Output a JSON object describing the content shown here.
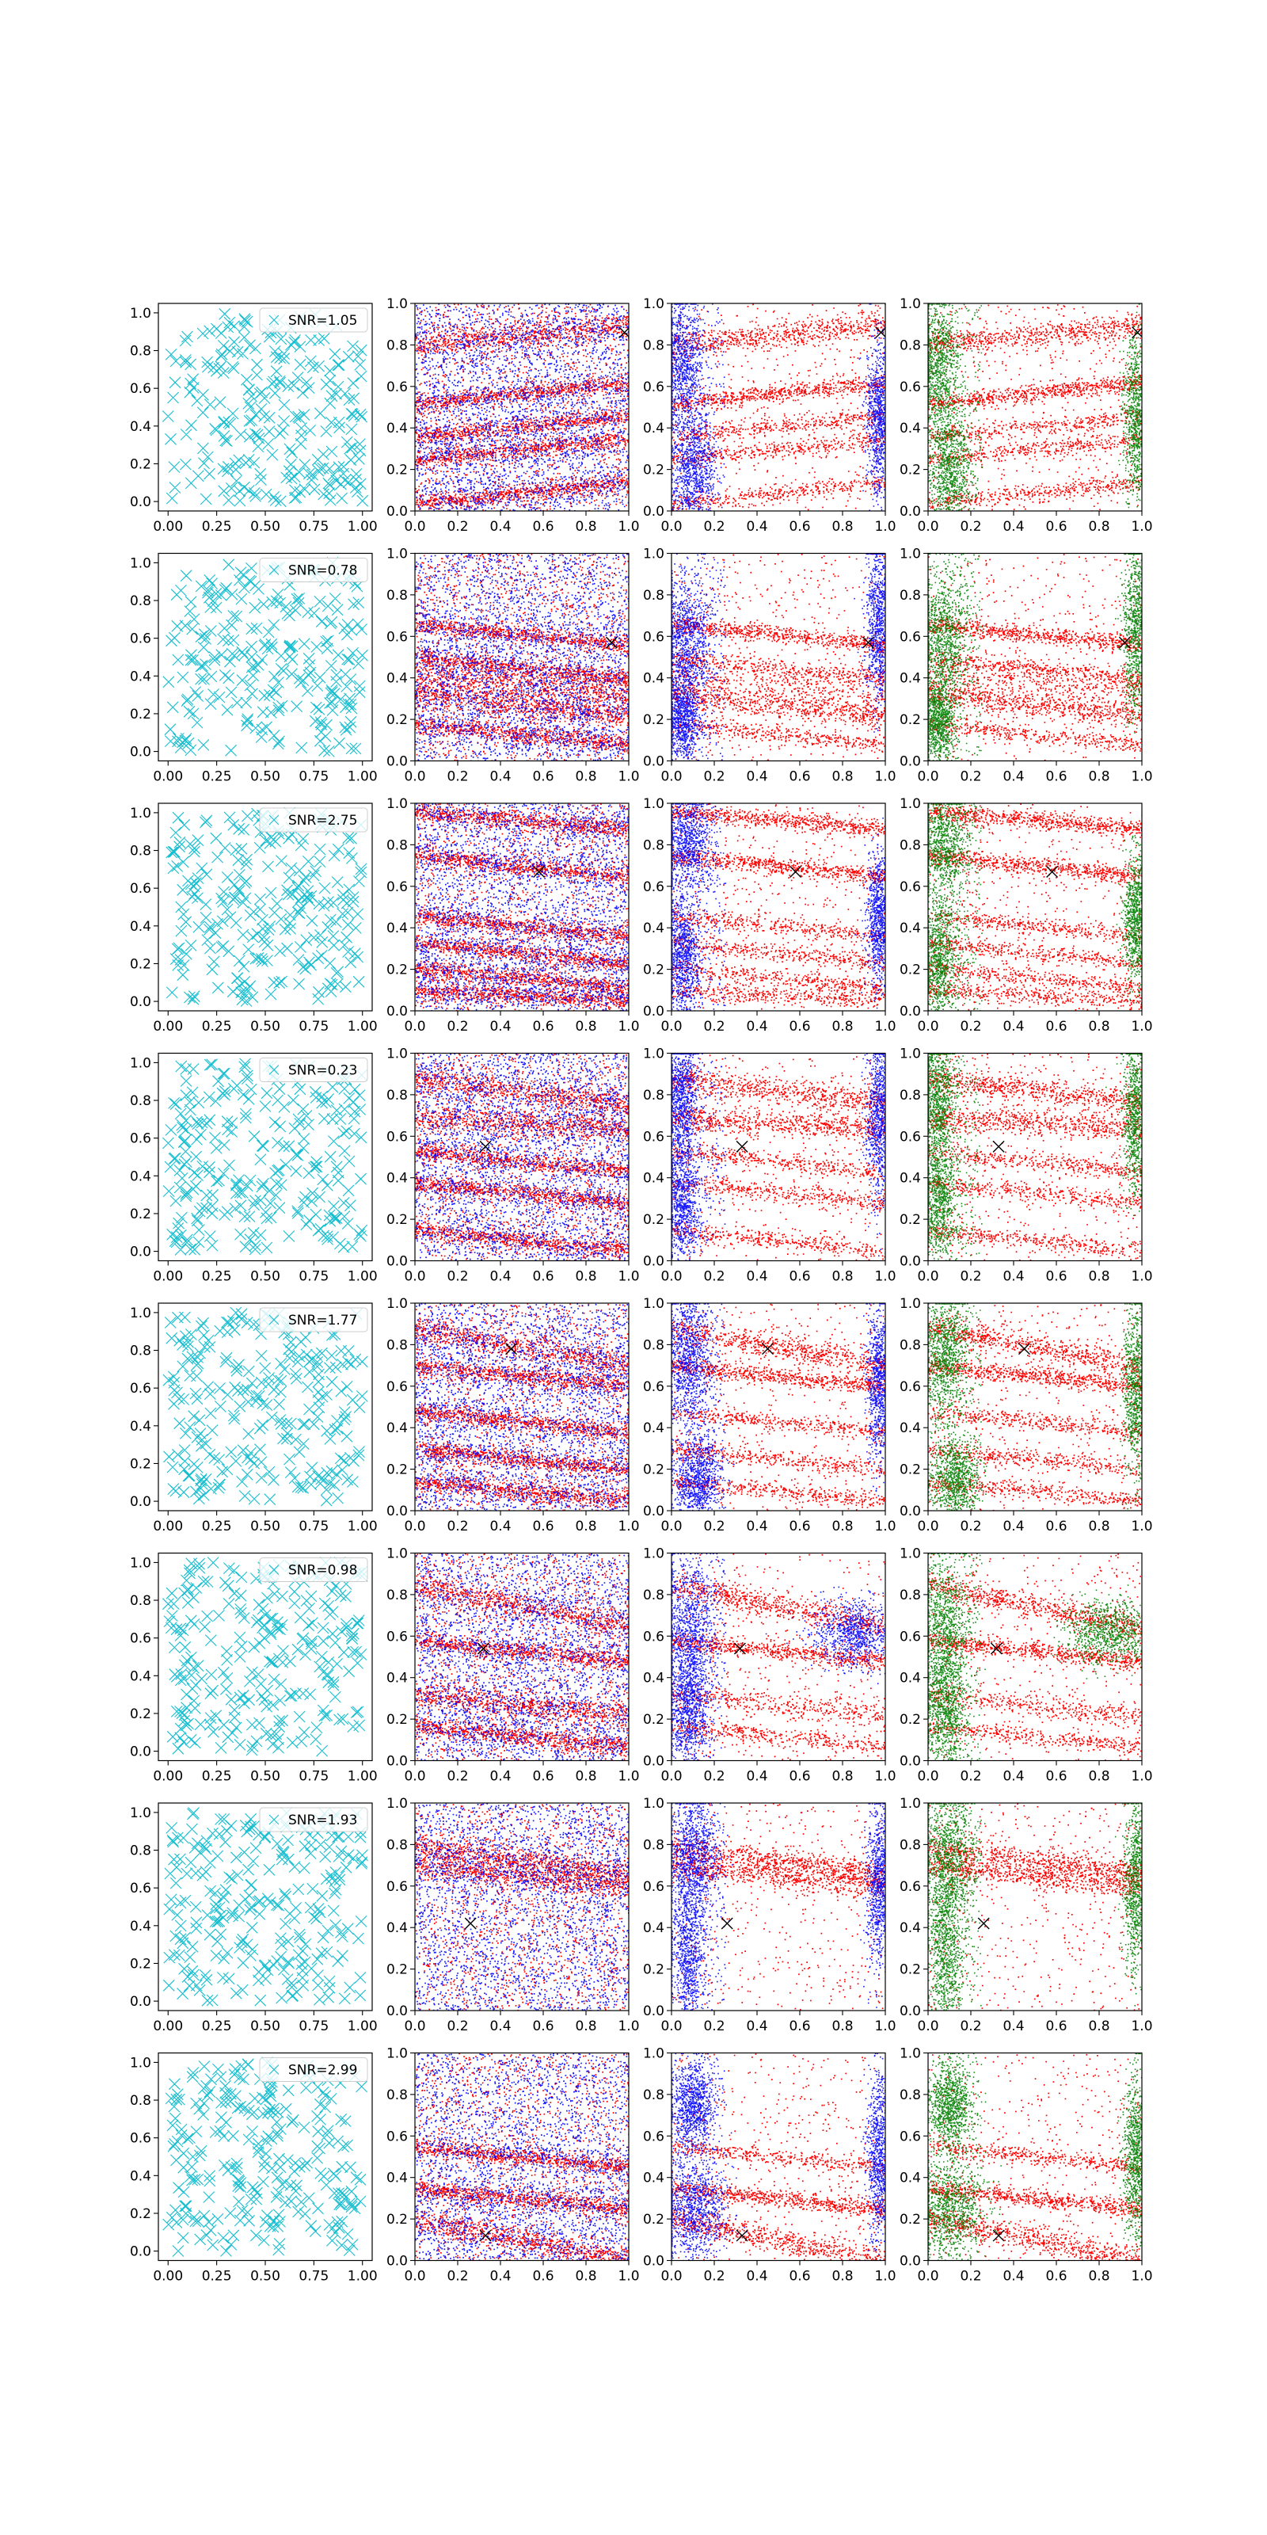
{
  "figure": {
    "rows": 8,
    "cols": 4,
    "colors": {
      "cyan": "#17becf",
      "red": "#ff0000",
      "blue": "#0000ff",
      "green": "#008000",
      "black": "#000000"
    }
  },
  "chart_data": {
    "type": "scatter",
    "grid": false,
    "axes": {
      "col1": {
        "xlim": [
          -0.05,
          1.05
        ],
        "ylim": [
          -0.05,
          1.05
        ],
        "xticks": [
          "0.00",
          "0.25",
          "0.50",
          "0.75",
          "1.00"
        ],
        "yticks": [
          "0.0",
          "0.2",
          "0.4",
          "0.6",
          "0.8",
          "1.0"
        ]
      },
      "other": {
        "xlim": [
          0,
          1
        ],
        "ylim": [
          0,
          1
        ],
        "xticks": [
          "0.0",
          "0.2",
          "0.4",
          "0.6",
          "0.8",
          "1.0"
        ],
        "yticks": [
          "0.0",
          "0.2",
          "0.4",
          "0.6",
          "0.8",
          "1.0"
        ]
      }
    },
    "legend_placement": "top-right",
    "rows": [
      {
        "snr_label": "SNR=1.05",
        "target": [
          0.98,
          0.86
        ],
        "bands": [
          [
            0.8,
            0.9,
            0.03
          ],
          [
            0.52,
            0.62,
            0.02
          ],
          [
            0.36,
            0.46,
            0.02
          ],
          [
            0.25,
            0.35,
            0.02
          ],
          [
            0.04,
            0.14,
            0.02
          ]
        ],
        "blue_blobs": [
          [
            0.05,
            0.7,
            0.05,
            0.16
          ],
          [
            0.1,
            0.2,
            0.05,
            0.14
          ],
          [
            0.97,
            0.45,
            0.03,
            0.2
          ]
        ]
      },
      {
        "snr_label": "SNR=0.78",
        "target": [
          0.92,
          0.57
        ],
        "bands": [
          [
            0.32,
            0.22,
            0.03
          ],
          [
            0.66,
            0.56,
            0.02
          ],
          [
            0.41,
            0.33,
            0.04
          ],
          [
            0.5,
            0.4,
            0.02
          ],
          [
            0.18,
            0.08,
            0.02
          ]
        ],
        "blue_blobs": [
          [
            0.07,
            0.6,
            0.06,
            0.15
          ],
          [
            0.05,
            0.2,
            0.04,
            0.1
          ],
          [
            0.97,
            0.65,
            0.03,
            0.2
          ]
        ]
      },
      {
        "snr_label": "SNR=2.75",
        "target": [
          0.58,
          0.67
        ],
        "bands": [
          [
            0.96,
            0.88,
            0.02
          ],
          [
            0.75,
            0.65,
            0.02
          ],
          [
            0.46,
            0.36,
            0.02
          ],
          [
            0.33,
            0.23,
            0.02
          ],
          [
            0.21,
            0.11,
            0.02
          ],
          [
            0.1,
            0.05,
            0.02
          ]
        ],
        "blue_blobs": [
          [
            0.07,
            0.8,
            0.06,
            0.12
          ],
          [
            0.05,
            0.25,
            0.04,
            0.15
          ],
          [
            0.97,
            0.45,
            0.03,
            0.15
          ]
        ]
      },
      {
        "snr_label": "SNR=0.23",
        "target": [
          0.33,
          0.55
        ],
        "bands": [
          [
            0.88,
            0.76,
            0.03
          ],
          [
            0.69,
            0.64,
            0.03
          ],
          [
            0.53,
            0.43,
            0.02
          ],
          [
            0.38,
            0.28,
            0.02
          ],
          [
            0.15,
            0.05,
            0.02
          ]
        ],
        "blue_blobs": [
          [
            0.04,
            0.8,
            0.04,
            0.15
          ],
          [
            0.05,
            0.3,
            0.04,
            0.15
          ],
          [
            0.97,
            0.7,
            0.03,
            0.2
          ]
        ]
      },
      {
        "snr_label": "SNR=1.77",
        "target": [
          0.45,
          0.78
        ],
        "bands": [
          [
            0.88,
            0.7,
            0.03
          ],
          [
            0.7,
            0.6,
            0.02
          ],
          [
            0.48,
            0.38,
            0.02
          ],
          [
            0.3,
            0.2,
            0.02
          ],
          [
            0.14,
            0.05,
            0.02
          ]
        ],
        "blue_blobs": [
          [
            0.08,
            0.75,
            0.05,
            0.15
          ],
          [
            0.12,
            0.15,
            0.06,
            0.1
          ],
          [
            0.97,
            0.6,
            0.03,
            0.2
          ]
        ]
      },
      {
        "snr_label": "SNR=0.98",
        "target": [
          0.32,
          0.54
        ],
        "bands": [
          [
            0.85,
            0.64,
            0.03
          ],
          [
            0.58,
            0.48,
            0.02
          ],
          [
            0.32,
            0.22,
            0.03
          ],
          [
            0.17,
            0.07,
            0.02
          ]
        ],
        "blue_blobs": [
          [
            0.08,
            0.65,
            0.06,
            0.18
          ],
          [
            0.08,
            0.25,
            0.05,
            0.15
          ],
          [
            0.85,
            0.62,
            0.1,
            0.08
          ]
        ]
      },
      {
        "snr_label": "SNR=1.93",
        "target": [
          0.26,
          0.42
        ],
        "bands": [
          [
            0.79,
            0.66,
            0.03
          ],
          [
            0.7,
            0.6,
            0.03
          ]
        ],
        "blue_blobs": [
          [
            0.1,
            0.75,
            0.06,
            0.15
          ],
          [
            0.08,
            0.3,
            0.04,
            0.2
          ],
          [
            0.97,
            0.6,
            0.03,
            0.2
          ]
        ]
      },
      {
        "snr_label": "SNR=2.99",
        "target": [
          0.33,
          0.12
        ],
        "bands": [
          [
            0.2,
            0.0,
            0.03
          ],
          [
            0.35,
            0.25,
            0.02
          ],
          [
            0.55,
            0.45,
            0.02
          ]
        ],
        "blue_blobs": [
          [
            0.1,
            0.25,
            0.08,
            0.12
          ],
          [
            0.1,
            0.75,
            0.05,
            0.1
          ],
          [
            0.97,
            0.5,
            0.03,
            0.2
          ]
        ]
      }
    ]
  }
}
